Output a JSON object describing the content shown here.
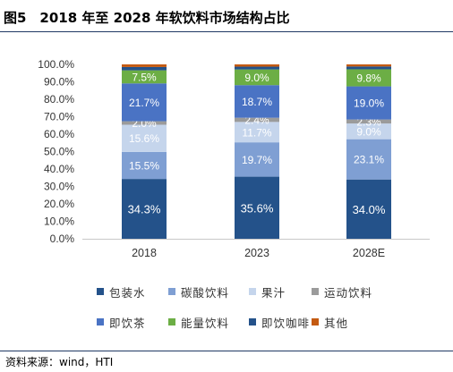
{
  "title": "图5　2018 年至 2028 年软饮料市场结构占比",
  "source": "资料来源：wind，HTI",
  "chart_data": {
    "type": "bar",
    "stacked": true,
    "categories": [
      "2018",
      "2023",
      "2028E"
    ],
    "ylim": [
      0,
      100
    ],
    "yticks": [
      "0.0%",
      "10.0%",
      "20.0%",
      "30.0%",
      "40.0%",
      "50.0%",
      "60.0%",
      "70.0%",
      "80.0%",
      "90.0%",
      "100.0%"
    ],
    "legend_position": "bottom",
    "series": [
      {
        "name": "包装水",
        "color": "#24528a",
        "values": [
          34.3,
          35.6,
          34.0
        ],
        "labels": [
          "34.3%",
          "35.6%",
          "34.0%"
        ],
        "label_color": "#ffffff"
      },
      {
        "name": "碳酸饮料",
        "color": "#7f9fd3",
        "values": [
          15.5,
          19.7,
          23.1
        ],
        "labels": [
          "15.5%",
          "19.7%",
          "23.1%"
        ],
        "label_color": "#ffffff"
      },
      {
        "name": "果汁",
        "color": "#c5d5ec",
        "values": [
          15.6,
          11.7,
          9.0
        ],
        "labels": [
          "15.6%",
          "11.7%",
          "9.0%"
        ],
        "label_color": "#ffffff"
      },
      {
        "name": "运动饮料",
        "color": "#9b9b9b",
        "values": [
          2.0,
          2.4,
          2.3
        ],
        "labels": [
          "2.0%",
          "2.4%",
          "2.3%"
        ],
        "label_color": "#ffffff"
      },
      {
        "name": "即饮茶",
        "color": "#4a73c4",
        "values": [
          21.7,
          18.7,
          19.0
        ],
        "labels": [
          "21.7%",
          "18.7%",
          "19.0%"
        ],
        "label_color": "#ffffff"
      },
      {
        "name": "能量饮料",
        "color": "#6cae45",
        "values": [
          7.5,
          9.0,
          9.8
        ],
        "labels": [
          "7.5%",
          "9.0%",
          "9.8%"
        ],
        "label_color": "#ffffff"
      },
      {
        "name": "即饮咖啡",
        "color": "#24528a",
        "values": [
          1.9,
          1.6,
          1.6
        ],
        "labels": [
          "",
          "",
          ""
        ],
        "label_color": "#ffffff"
      },
      {
        "name": "其他",
        "color": "#c45a11",
        "values": [
          1.5,
          1.3,
          1.2
        ],
        "labels": [
          "",
          "",
          ""
        ],
        "label_color": "#ffffff"
      }
    ]
  }
}
